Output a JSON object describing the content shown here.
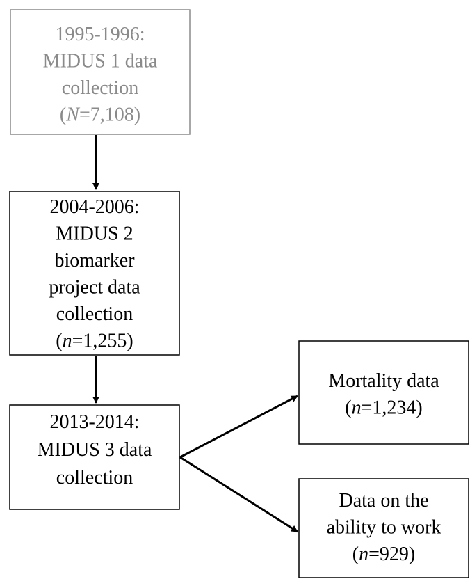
{
  "nodes": [
    {
      "lines": [
        [
          {
            "text": "1995-1996:"
          }
        ],
        [
          {
            "text": "MIDUS 1 data"
          }
        ],
        [
          {
            "text": "collection"
          }
        ],
        [
          {
            "text": "("
          },
          {
            "text": "N",
            "italic": true
          },
          {
            "text": "=7,108)"
          }
        ]
      ]
    },
    {
      "lines": [
        [
          {
            "text": "2004-2006:"
          }
        ],
        [
          {
            "text": "MIDUS 2"
          }
        ],
        [
          {
            "text": "biomarker"
          }
        ],
        [
          {
            "text": "project data"
          }
        ],
        [
          {
            "text": "collection"
          }
        ],
        [
          {
            "text": "("
          },
          {
            "text": "n",
            "italic": true
          },
          {
            "text": "=1,255)"
          }
        ]
      ]
    },
    {
      "lines": [
        [
          {
            "text": "2013-2014:"
          }
        ],
        [
          {
            "text": "MIDUS 3 data"
          }
        ],
        [
          {
            "text": "collection"
          }
        ]
      ]
    },
    {
      "lines": [
        [
          {
            "text": "Mortality data"
          }
        ],
        [
          {
            "text": "("
          },
          {
            "text": "n",
            "italic": true
          },
          {
            "text": "=1,234)"
          }
        ]
      ]
    },
    {
      "lines": [
        [
          {
            "text": "Data on the"
          }
        ],
        [
          {
            "text": "ability to work"
          }
        ],
        [
          {
            "text": "("
          },
          {
            "text": "n",
            "italic": true
          },
          {
            "text": "=929)"
          }
        ]
      ]
    }
  ]
}
